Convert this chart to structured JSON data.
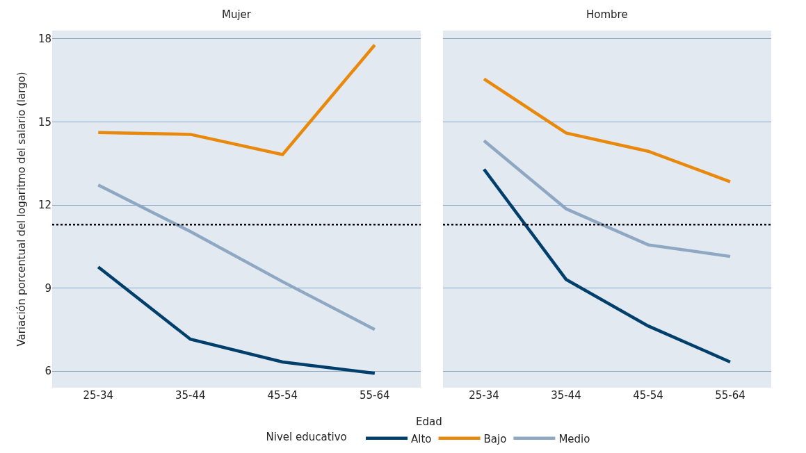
{
  "chart_data": [
    {
      "type": "line",
      "title": "Mujer",
      "xlabel": "Edad",
      "ylabel": "Variación porcentual del logaritmo del salario (largo)",
      "legend_title": "Nivel educativo",
      "legend": "bottom",
      "grid": "y",
      "categories": [
        "25-34",
        "35-44",
        "45-54",
        "55-64"
      ],
      "ylim": [
        5.4,
        18.3
      ],
      "yticks": [
        6,
        9,
        12,
        15,
        18
      ],
      "series": [
        {
          "name": "Alto",
          "color": "#003f6b",
          "values": [
            9.76,
            7.15,
            6.33,
            5.92
          ]
        },
        {
          "name": "Bajo",
          "color": "#e8890c",
          "values": [
            14.62,
            14.55,
            13.82,
            17.78
          ]
        },
        {
          "name": "Medio",
          "color": "#8ea8c3",
          "values": [
            12.72,
            11.04,
            9.23,
            7.5
          ]
        }
      ],
      "ref_lines": [
        {
          "axis": "y",
          "value": 11.29,
          "color": "#000000",
          "line_style": "dotted"
        }
      ]
    },
    {
      "type": "line",
      "title": "Hombre",
      "grid": "y",
      "tick_labels": "x",
      "categories": [
        "25-34",
        "35-44",
        "45-54",
        "55-64"
      ],
      "ylim": [
        5.4,
        18.3
      ],
      "yticks": [
        6,
        9,
        12,
        15,
        18
      ],
      "series": [
        {
          "color": "#003f6b",
          "values": [
            13.29,
            9.31,
            7.63,
            6.33
          ]
        },
        {
          "color": "#e8890c",
          "values": [
            16.55,
            14.6,
            13.94,
            12.84
          ]
        },
        {
          "color": "#8ea8c3",
          "values": [
            14.32,
            11.86,
            10.56,
            10.14
          ]
        }
      ],
      "ref_lines": [
        {
          "axis": "y",
          "value": 11.29,
          "color": "#000000",
          "line_style": "dotted"
        }
      ]
    }
  ]
}
